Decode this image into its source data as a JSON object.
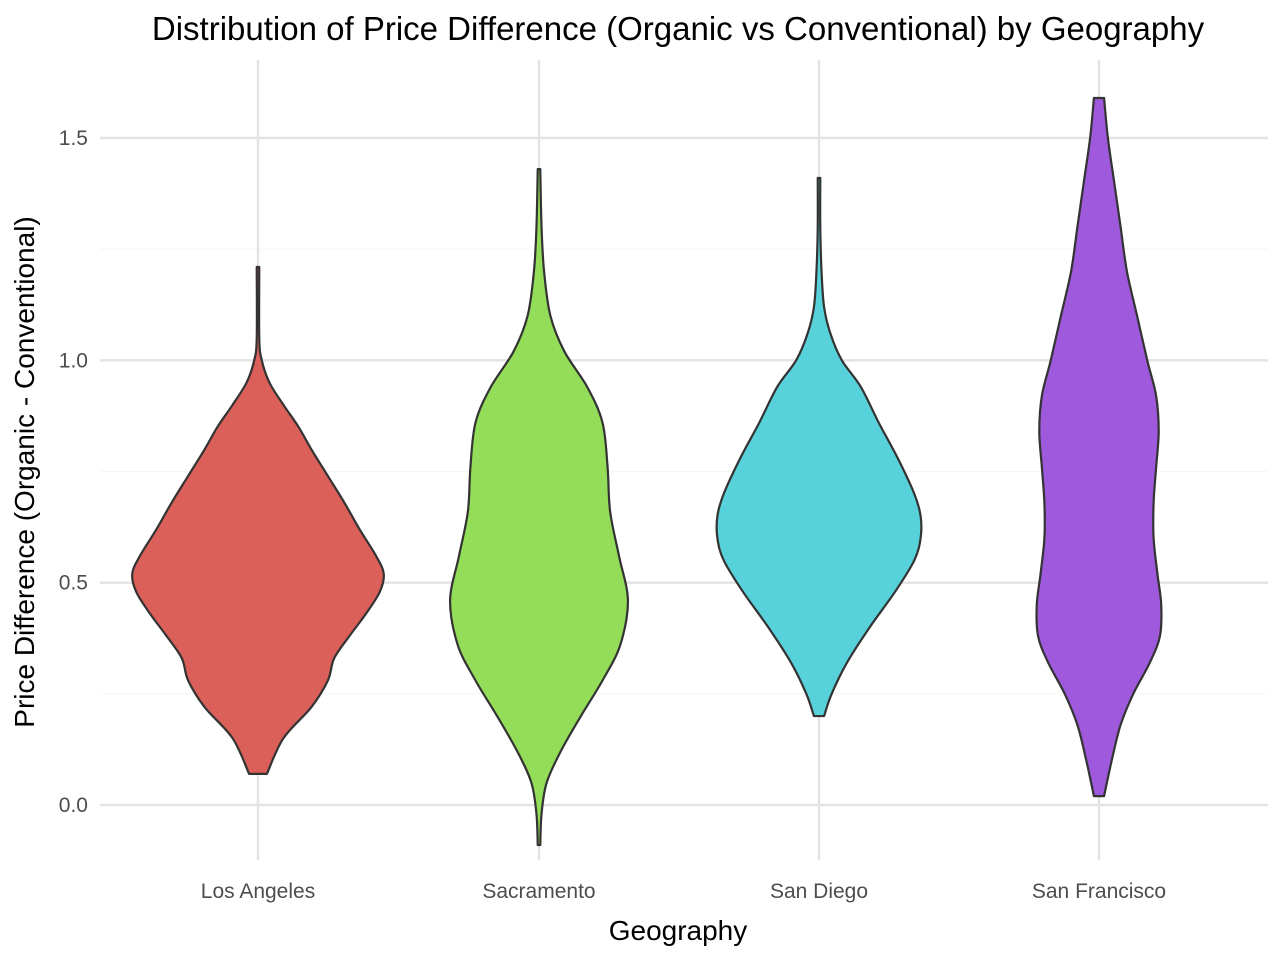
{
  "chart_data": {
    "type": "violin",
    "title": "Distribution of Price Difference (Organic vs Conventional) by Geography",
    "xlabel": "Geography",
    "ylabel": "Price Difference (Organic - Conventional)",
    "ylim": [
      -0.15,
      1.65
    ],
    "yticks": [
      0.0,
      0.5,
      1.0,
      1.5
    ],
    "ytick_labels": [
      "0.0",
      "0.5",
      "1.0",
      "1.5"
    ],
    "y_minor_ticks": [
      0.25,
      0.75,
      1.25
    ],
    "grid": true,
    "legend": "none",
    "categories": [
      "Los Angeles",
      "Sacramento",
      "San Diego",
      "San Francisco"
    ],
    "series": [
      {
        "category": "Los Angeles",
        "color": "#dc605a",
        "min": 0.07,
        "max": 1.21,
        "density": [
          [
            0.07,
            0.07
          ],
          [
            0.15,
            0.2
          ],
          [
            0.22,
            0.42
          ],
          [
            0.28,
            0.55
          ],
          [
            0.33,
            0.6
          ],
          [
            0.38,
            0.72
          ],
          [
            0.43,
            0.85
          ],
          [
            0.48,
            0.96
          ],
          [
            0.52,
            0.99
          ],
          [
            0.56,
            0.93
          ],
          [
            0.62,
            0.8
          ],
          [
            0.68,
            0.68
          ],
          [
            0.74,
            0.55
          ],
          [
            0.8,
            0.42
          ],
          [
            0.85,
            0.32
          ],
          [
            0.9,
            0.2
          ],
          [
            0.95,
            0.09
          ],
          [
            1.0,
            0.03
          ],
          [
            1.05,
            0.01
          ],
          [
            1.21,
            0.01
          ]
        ]
      },
      {
        "category": "Sacramento",
        "color": "#93dd58",
        "min": -0.09,
        "max": 1.43,
        "density": [
          [
            -0.09,
            0.01
          ],
          [
            -0.02,
            0.02
          ],
          [
            0.05,
            0.06
          ],
          [
            0.12,
            0.17
          ],
          [
            0.2,
            0.33
          ],
          [
            0.28,
            0.5
          ],
          [
            0.36,
            0.64
          ],
          [
            0.46,
            0.7
          ],
          [
            0.56,
            0.63
          ],
          [
            0.66,
            0.56
          ],
          [
            0.76,
            0.54
          ],
          [
            0.86,
            0.5
          ],
          [
            0.94,
            0.38
          ],
          [
            1.02,
            0.2
          ],
          [
            1.1,
            0.09
          ],
          [
            1.2,
            0.04
          ],
          [
            1.3,
            0.02
          ],
          [
            1.43,
            0.01
          ]
        ]
      },
      {
        "category": "San Diego",
        "color": "#58d2da",
        "min": 0.2,
        "max": 1.41,
        "density": [
          [
            0.2,
            0.04
          ],
          [
            0.25,
            0.1
          ],
          [
            0.32,
            0.22
          ],
          [
            0.4,
            0.4
          ],
          [
            0.48,
            0.6
          ],
          [
            0.55,
            0.75
          ],
          [
            0.6,
            0.8
          ],
          [
            0.65,
            0.8
          ],
          [
            0.7,
            0.75
          ],
          [
            0.78,
            0.62
          ],
          [
            0.86,
            0.47
          ],
          [
            0.94,
            0.33
          ],
          [
            1.0,
            0.18
          ],
          [
            1.06,
            0.09
          ],
          [
            1.12,
            0.04
          ],
          [
            1.2,
            0.02
          ],
          [
            1.3,
            0.01
          ],
          [
            1.41,
            0.01
          ]
        ]
      },
      {
        "category": "San Francisco",
        "color": "#9e59dc",
        "min": 0.02,
        "max": 1.59,
        "density": [
          [
            0.02,
            0.04
          ],
          [
            0.1,
            0.1
          ],
          [
            0.18,
            0.17
          ],
          [
            0.25,
            0.27
          ],
          [
            0.32,
            0.4
          ],
          [
            0.38,
            0.48
          ],
          [
            0.45,
            0.49
          ],
          [
            0.52,
            0.46
          ],
          [
            0.6,
            0.43
          ],
          [
            0.68,
            0.43
          ],
          [
            0.76,
            0.45
          ],
          [
            0.84,
            0.47
          ],
          [
            0.92,
            0.45
          ],
          [
            1.0,
            0.38
          ],
          [
            1.1,
            0.3
          ],
          [
            1.2,
            0.22
          ],
          [
            1.3,
            0.17
          ],
          [
            1.4,
            0.12
          ],
          [
            1.5,
            0.07
          ],
          [
            1.59,
            0.04
          ]
        ]
      }
    ]
  }
}
